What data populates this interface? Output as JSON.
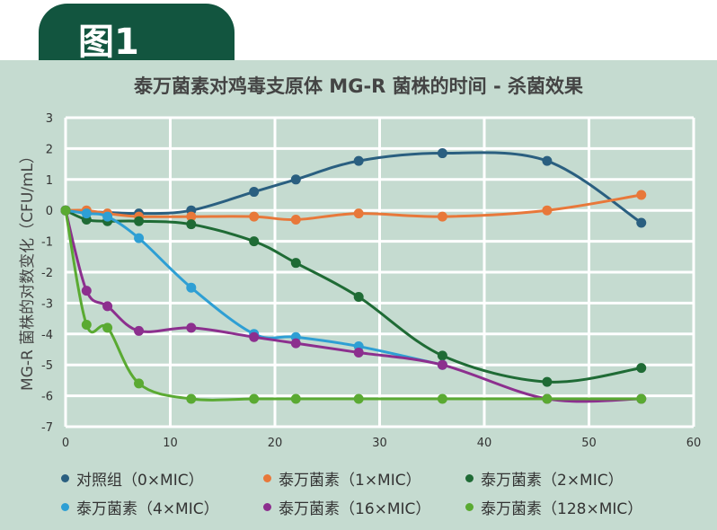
{
  "figure_label": "图1",
  "chart_data": {
    "type": "line",
    "title": "泰万菌素对鸡毒支原体 MG-R 菌株的时间 - 杀菌效果",
    "xlabel": "",
    "ylabel": "MG-R 菌株的对数变化（CFU/mL）",
    "xlim": [
      0,
      60
    ],
    "ylim": [
      -7,
      3
    ],
    "xticks": [
      0,
      10,
      20,
      30,
      40,
      50,
      60
    ],
    "yticks": [
      3,
      2,
      1,
      0,
      -1,
      -2,
      -3,
      -4,
      -5,
      -6,
      -7
    ],
    "grid": true,
    "legend_position": "bottom",
    "series": [
      {
        "name": "对照组（0×MIC）",
        "color": "#2a5f80",
        "x": [
          0,
          7,
          12,
          18,
          22,
          28,
          36,
          46,
          55
        ],
        "y": [
          0,
          -0.1,
          0,
          0.6,
          1.0,
          1.6,
          1.85,
          1.6,
          -0.4
        ]
      },
      {
        "name": "泰万菌素（1×MIC）",
        "color": "#e8783a",
        "x": [
          0,
          2,
          4,
          7,
          12,
          18,
          22,
          28,
          36,
          46,
          55
        ],
        "y": [
          0,
          0,
          -0.1,
          -0.2,
          -0.2,
          -0.2,
          -0.3,
          -0.1,
          -0.2,
          0,
          0.5
        ]
      },
      {
        "name": "泰万菌素（2×MIC）",
        "color": "#1f6b35",
        "x": [
          0,
          2,
          4,
          7,
          12,
          18,
          22,
          28,
          36,
          46,
          55
        ],
        "y": [
          0,
          -0.3,
          -0.35,
          -0.35,
          -0.45,
          -1.0,
          -1.7,
          -2.8,
          -4.7,
          -5.55,
          -5.1
        ]
      },
      {
        "name": "泰万菌素（4×MIC）",
        "color": "#2e9fd4",
        "x": [
          0,
          2,
          4,
          7,
          12,
          18,
          22,
          28,
          36
        ],
        "y": [
          0,
          -0.1,
          -0.2,
          -0.9,
          -2.5,
          -4.0,
          -4.1,
          -4.4,
          -5.0
        ]
      },
      {
        "name": "泰万菌素（16×MIC）",
        "color": "#8c2f8e",
        "x": [
          0,
          2,
          4,
          7,
          12,
          18,
          22,
          28,
          36,
          46,
          55
        ],
        "y": [
          0,
          -2.6,
          -3.1,
          -3.9,
          -3.8,
          -4.1,
          -4.3,
          -4.6,
          -5.0,
          -6.1,
          -6.1
        ]
      },
      {
        "name": "泰万菌素（128×MIC）",
        "color": "#5aaa32",
        "x": [
          0,
          2,
          4,
          7,
          12,
          18,
          22,
          28,
          36,
          46,
          55
        ],
        "y": [
          0,
          -3.7,
          -3.8,
          -5.6,
          -6.1,
          -6.1,
          -6.1,
          -6.1,
          -6.1,
          -6.1,
          -6.1
        ]
      }
    ]
  }
}
